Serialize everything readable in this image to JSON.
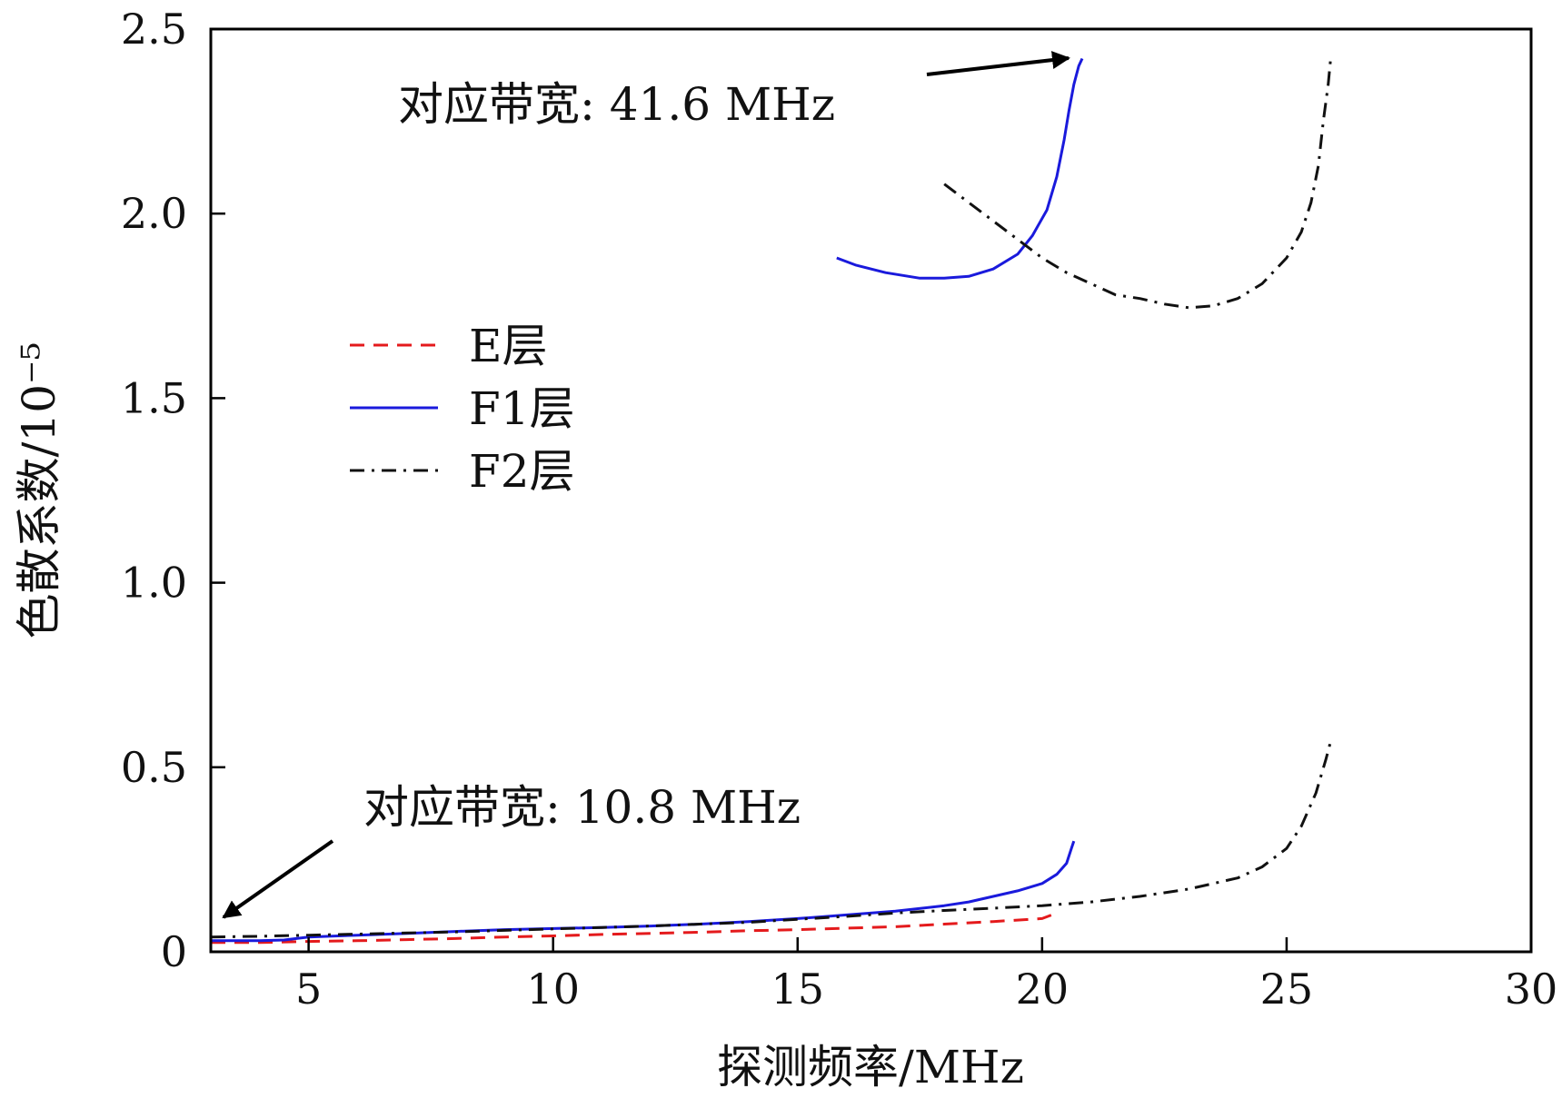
{
  "chart_data": {
    "type": "line",
    "xlabel": "探测频率/MHz",
    "ylabel": "色散系数/10⁻⁵",
    "xlim": [
      3,
      30
    ],
    "ylim": [
      0,
      2.5
    ],
    "x_ticks": [
      {
        "value": 5,
        "label": "5"
      },
      {
        "value": 10,
        "label": "10"
      },
      {
        "value": 15,
        "label": "15"
      },
      {
        "value": 20,
        "label": "20"
      },
      {
        "value": 25,
        "label": "25"
      },
      {
        "value": 30,
        "label": "30"
      }
    ],
    "y_ticks": [
      {
        "value": 0,
        "label": "0"
      },
      {
        "value": 0.5,
        "label": "0.5"
      },
      {
        "value": 1.0,
        "label": "1.0"
      },
      {
        "value": 1.5,
        "label": "1.5"
      },
      {
        "value": 2.0,
        "label": "2.0"
      },
      {
        "value": 2.5,
        "label": "2.5"
      }
    ],
    "grid": false,
    "legend_position": "center-left",
    "series": [
      {
        "name": "E层",
        "color": "#e41a1c",
        "style": "dashed",
        "segments": [
          {
            "x": [
              3,
              4,
              5,
              6,
              7,
              8,
              9,
              10,
              11,
              12,
              13,
              14,
              15,
              16,
              17,
              18,
              19,
              20,
              20.3
            ],
            "y": [
              0.025,
              0.025,
              0.028,
              0.03,
              0.033,
              0.036,
              0.04,
              0.043,
              0.047,
              0.05,
              0.053,
              0.057,
              0.06,
              0.064,
              0.068,
              0.075,
              0.082,
              0.09,
              0.105
            ]
          }
        ]
      },
      {
        "name": "F1层",
        "color": "#1a1adc",
        "style": "solid",
        "segments": [
          {
            "x": [
              3,
              4,
              4.5,
              5,
              6,
              7,
              8,
              9,
              10,
              11,
              12,
              13,
              14,
              15,
              16,
              17,
              18,
              18.5,
              19,
              19.5,
              20,
              20.3,
              20.5,
              20.6,
              20.65
            ],
            "y": [
              0.03,
              0.03,
              0.032,
              0.04,
              0.045,
              0.05,
              0.055,
              0.06,
              0.063,
              0.066,
              0.07,
              0.075,
              0.082,
              0.09,
              0.1,
              0.11,
              0.125,
              0.135,
              0.15,
              0.165,
              0.185,
              0.21,
              0.24,
              0.28,
              0.3
            ]
          },
          {
            "x": [
              15.8,
              16.2,
              16.8,
              17.5,
              18,
              18.5,
              19,
              19.5,
              19.8,
              20.1,
              20.3,
              20.45,
              20.55,
              20.65,
              20.75,
              20.82
            ],
            "y": [
              1.88,
              1.86,
              1.84,
              1.825,
              1.825,
              1.83,
              1.85,
              1.89,
              1.94,
              2.01,
              2.1,
              2.2,
              2.28,
              2.35,
              2.4,
              2.42
            ]
          }
        ]
      },
      {
        "name": "F2层",
        "color": "#111111",
        "style": "dashdot",
        "segments": [
          {
            "x": [
              3,
              4,
              5,
              6,
              7,
              8,
              9,
              10,
              11,
              12,
              13,
              14,
              15,
              16,
              17,
              18,
              19,
              20,
              21,
              22,
              23,
              24,
              24.5,
              25,
              25.3,
              25.6,
              25.8,
              25.9
            ],
            "y": [
              0.04,
              0.042,
              0.045,
              0.048,
              0.051,
              0.054,
              0.058,
              0.062,
              0.066,
              0.07,
              0.075,
              0.08,
              0.088,
              0.096,
              0.105,
              0.112,
              0.118,
              0.125,
              0.135,
              0.15,
              0.17,
              0.2,
              0.23,
              0.28,
              0.34,
              0.43,
              0.52,
              0.57
            ]
          },
          {
            "x": [
              18,
              18.5,
              19,
              19.5,
              20,
              20.5,
              21,
              21.5,
              22,
              22.5,
              23,
              23.5,
              24,
              24.5,
              25,
              25.3,
              25.5,
              25.65,
              25.75,
              25.85,
              25.9
            ],
            "y": [
              2.08,
              2.03,
              1.98,
              1.93,
              1.88,
              1.84,
              1.81,
              1.78,
              1.77,
              1.755,
              1.745,
              1.75,
              1.77,
              1.81,
              1.88,
              1.95,
              2.03,
              2.13,
              2.25,
              2.35,
              2.42
            ]
          }
        ]
      }
    ],
    "annotations": [
      {
        "text": "对应带宽: 41.6 MHz",
        "arrow_to": [
          20.6,
          2.43
        ]
      },
      {
        "text": "对应带宽: 10.8 MHz",
        "arrow_to": [
          3.2,
          0.09
        ]
      }
    ]
  }
}
